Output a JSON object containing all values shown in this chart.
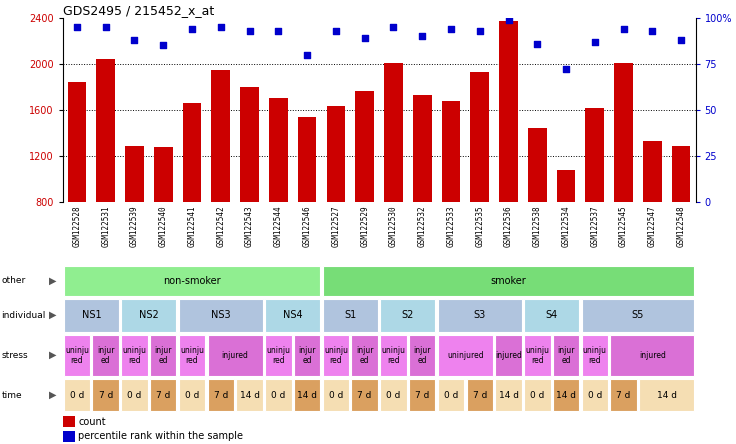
{
  "title": "GDS2495 / 215452_x_at",
  "samples": [
    "GSM122528",
    "GSM122531",
    "GSM122539",
    "GSM122540",
    "GSM122541",
    "GSM122542",
    "GSM122543",
    "GSM122544",
    "GSM122546",
    "GSM122527",
    "GSM122529",
    "GSM122530",
    "GSM122532",
    "GSM122533",
    "GSM122535",
    "GSM122536",
    "GSM122538",
    "GSM122534",
    "GSM122537",
    "GSM122545",
    "GSM122547",
    "GSM122548"
  ],
  "counts": [
    1840,
    2040,
    1290,
    1280,
    1660,
    1950,
    1800,
    1700,
    1540,
    1630,
    1760,
    2010,
    1730,
    1680,
    1930,
    2370,
    1440,
    1080,
    1620,
    2010,
    1330,
    1290
  ],
  "percentile": [
    95,
    95,
    88,
    85,
    94,
    95,
    93,
    93,
    80,
    93,
    89,
    95,
    90,
    94,
    93,
    99,
    86,
    72,
    87,
    94,
    93,
    88
  ],
  "ylim_left": [
    800,
    2400
  ],
  "ylim_right": [
    0,
    100
  ],
  "yticks_left": [
    800,
    1200,
    1600,
    2000,
    2400
  ],
  "yticks_right": [
    0,
    25,
    50,
    75,
    100
  ],
  "bar_color": "#cc0000",
  "dot_color": "#0000cc",
  "chart_bg": "#ffffff",
  "fig_bg": "#ffffff",
  "xticklabel_bg": "#d0d0d0",
  "other_labels": [
    {
      "text": "non-smoker",
      "start": 0,
      "end": 9,
      "color": "#90ee90"
    },
    {
      "text": "smoker",
      "start": 9,
      "end": 22,
      "color": "#77dd77"
    }
  ],
  "individual_labels": [
    {
      "text": "NS1",
      "start": 0,
      "end": 2,
      "color": "#b0c4de"
    },
    {
      "text": "NS2",
      "start": 2,
      "end": 4,
      "color": "#add8e6"
    },
    {
      "text": "NS3",
      "start": 4,
      "end": 7,
      "color": "#b0c4de"
    },
    {
      "text": "NS4",
      "start": 7,
      "end": 9,
      "color": "#add8e6"
    },
    {
      "text": "S1",
      "start": 9,
      "end": 11,
      "color": "#b0c4de"
    },
    {
      "text": "S2",
      "start": 11,
      "end": 13,
      "color": "#add8e6"
    },
    {
      "text": "S3",
      "start": 13,
      "end": 16,
      "color": "#b0c4de"
    },
    {
      "text": "S4",
      "start": 16,
      "end": 18,
      "color": "#add8e6"
    },
    {
      "text": "S5",
      "start": 18,
      "end": 22,
      "color": "#b0c4de"
    }
  ],
  "stress_labels": [
    {
      "text": "uninju\nred",
      "start": 0,
      "end": 1,
      "color": "#ee82ee"
    },
    {
      "text": "injur\ned",
      "start": 1,
      "end": 2,
      "color": "#da70d6"
    },
    {
      "text": "uninju\nred",
      "start": 2,
      "end": 3,
      "color": "#ee82ee"
    },
    {
      "text": "injur\ned",
      "start": 3,
      "end": 4,
      "color": "#da70d6"
    },
    {
      "text": "uninju\nred",
      "start": 4,
      "end": 5,
      "color": "#ee82ee"
    },
    {
      "text": "injured",
      "start": 5,
      "end": 7,
      "color": "#da70d6"
    },
    {
      "text": "uninju\nred",
      "start": 7,
      "end": 8,
      "color": "#ee82ee"
    },
    {
      "text": "injur\ned",
      "start": 8,
      "end": 9,
      "color": "#da70d6"
    },
    {
      "text": "uninju\nred",
      "start": 9,
      "end": 10,
      "color": "#ee82ee"
    },
    {
      "text": "injur\ned",
      "start": 10,
      "end": 11,
      "color": "#da70d6"
    },
    {
      "text": "uninju\nred",
      "start": 11,
      "end": 12,
      "color": "#ee82ee"
    },
    {
      "text": "injur\ned",
      "start": 12,
      "end": 13,
      "color": "#da70d6"
    },
    {
      "text": "uninjured",
      "start": 13,
      "end": 15,
      "color": "#ee82ee"
    },
    {
      "text": "injured",
      "start": 15,
      "end": 16,
      "color": "#da70d6"
    },
    {
      "text": "uninju\nred",
      "start": 16,
      "end": 17,
      "color": "#ee82ee"
    },
    {
      "text": "injur\ned",
      "start": 17,
      "end": 18,
      "color": "#da70d6"
    },
    {
      "text": "uninju\nred",
      "start": 18,
      "end": 19,
      "color": "#ee82ee"
    },
    {
      "text": "injured",
      "start": 19,
      "end": 22,
      "color": "#da70d6"
    }
  ],
  "time_labels": [
    {
      "text": "0 d",
      "start": 0,
      "end": 1,
      "color": "#f5deb3"
    },
    {
      "text": "7 d",
      "start": 1,
      "end": 2,
      "color": "#daa060"
    },
    {
      "text": "0 d",
      "start": 2,
      "end": 3,
      "color": "#f5deb3"
    },
    {
      "text": "7 d",
      "start": 3,
      "end": 4,
      "color": "#daa060"
    },
    {
      "text": "0 d",
      "start": 4,
      "end": 5,
      "color": "#f5deb3"
    },
    {
      "text": "7 d",
      "start": 5,
      "end": 6,
      "color": "#daa060"
    },
    {
      "text": "14 d",
      "start": 6,
      "end": 7,
      "color": "#f5deb3"
    },
    {
      "text": "0 d",
      "start": 7,
      "end": 8,
      "color": "#f5deb3"
    },
    {
      "text": "14 d",
      "start": 8,
      "end": 9,
      "color": "#daa060"
    },
    {
      "text": "0 d",
      "start": 9,
      "end": 10,
      "color": "#f5deb3"
    },
    {
      "text": "7 d",
      "start": 10,
      "end": 11,
      "color": "#daa060"
    },
    {
      "text": "0 d",
      "start": 11,
      "end": 12,
      "color": "#f5deb3"
    },
    {
      "text": "7 d",
      "start": 12,
      "end": 13,
      "color": "#daa060"
    },
    {
      "text": "0 d",
      "start": 13,
      "end": 14,
      "color": "#f5deb3"
    },
    {
      "text": "7 d",
      "start": 14,
      "end": 15,
      "color": "#daa060"
    },
    {
      "text": "14 d",
      "start": 15,
      "end": 16,
      "color": "#f5deb3"
    },
    {
      "text": "0 d",
      "start": 16,
      "end": 17,
      "color": "#f5deb3"
    },
    {
      "text": "14 d",
      "start": 17,
      "end": 18,
      "color": "#daa060"
    },
    {
      "text": "0 d",
      "start": 18,
      "end": 19,
      "color": "#f5deb3"
    },
    {
      "text": "7 d",
      "start": 19,
      "end": 20,
      "color": "#daa060"
    },
    {
      "text": "14 d",
      "start": 20,
      "end": 22,
      "color": "#f5deb3"
    }
  ],
  "row_labels": [
    "other",
    "individual",
    "stress",
    "time"
  ],
  "n_samples": 22
}
